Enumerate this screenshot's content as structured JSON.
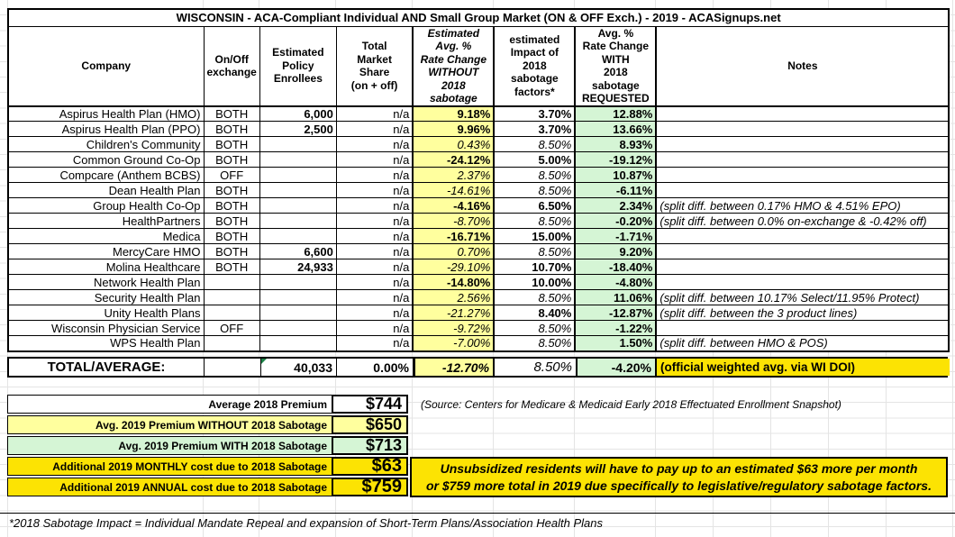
{
  "title": "WISCONSIN - ACA-Compliant Individual AND Small Group Market (ON & OFF Exch.) - 2019 - ACASignups.net",
  "columns": [
    {
      "label": "Company"
    },
    {
      "label": "On/Off\nexchange"
    },
    {
      "label": "Estimated\nPolicy\nEnrollees"
    },
    {
      "label": "Total\nMarket\nShare\n(on + off)"
    },
    {
      "label": "Estimated\nAvg. %\nRate Change\nWITHOUT\n2018 sabotage"
    },
    {
      "label": "estimated\nImpact of\n2018 sabotage\nfactors*"
    },
    {
      "label": "Avg. %\nRate Change\nWITH\n2018 sabotage\nREQUESTED"
    },
    {
      "label": "Notes"
    }
  ],
  "rows": [
    {
      "company": "Aspirus Health Plan (HMO)",
      "exchange": "BOTH",
      "enrollees": "6,000",
      "share": "n/a",
      "without": "9.18%",
      "wstyle": "b",
      "impact": "3.70%",
      "istyle": "b",
      "with": "12.88%",
      "note": ""
    },
    {
      "company": "Aspirus Health Plan (PPO)",
      "exchange": "BOTH",
      "enrollees": "2,500",
      "share": "n/a",
      "without": "9.96%",
      "wstyle": "b",
      "impact": "3.70%",
      "istyle": "b",
      "with": "13.66%",
      "note": ""
    },
    {
      "company": "Children's Community",
      "exchange": "BOTH",
      "enrollees": "",
      "share": "n/a",
      "without": "0.43%",
      "wstyle": "i",
      "impact": "8.50%",
      "istyle": "i",
      "with": "8.93%",
      "note": ""
    },
    {
      "company": "Common Ground Co-Op",
      "exchange": "BOTH",
      "enrollees": "",
      "share": "n/a",
      "without": "-24.12%",
      "wstyle": "b",
      "impact": "5.00%",
      "istyle": "b",
      "with": "-19.12%",
      "note": ""
    },
    {
      "company": "Compcare (Anthem BCBS)",
      "exchange": "OFF",
      "enrollees": "",
      "share": "n/a",
      "without": "2.37%",
      "wstyle": "i",
      "impact": "8.50%",
      "istyle": "i",
      "with": "10.87%",
      "note": ""
    },
    {
      "company": "Dean Health Plan",
      "exchange": "BOTH",
      "enrollees": "",
      "share": "n/a",
      "without": "-14.61%",
      "wstyle": "i",
      "impact": "8.50%",
      "istyle": "i",
      "with": "-6.11%",
      "note": ""
    },
    {
      "company": "Group Health Co-Op",
      "exchange": "BOTH",
      "enrollees": "",
      "share": "n/a",
      "without": "-4.16%",
      "wstyle": "b",
      "impact": "6.50%",
      "istyle": "b",
      "with": "2.34%",
      "note": "(split diff. between 0.17% HMO & 4.51% EPO)"
    },
    {
      "company": "HealthPartners",
      "exchange": "BOTH",
      "enrollees": "",
      "share": "n/a",
      "without": "-8.70%",
      "wstyle": "i",
      "impact": "8.50%",
      "istyle": "i",
      "with": "-0.20%",
      "note": "(split diff. between 0.0% on-exchange & -0.42% off)"
    },
    {
      "company": "Medica",
      "exchange": "BOTH",
      "enrollees": "",
      "share": "n/a",
      "without": "-16.71%",
      "wstyle": "b",
      "impact": "15.00%",
      "istyle": "b",
      "with": "-1.71%",
      "note": ""
    },
    {
      "company": "MercyCare HMO",
      "exchange": "BOTH",
      "enrollees": "6,600",
      "share": "n/a",
      "without": "0.70%",
      "wstyle": "i",
      "impact": "8.50%",
      "istyle": "i",
      "with": "9.20%",
      "note": ""
    },
    {
      "company": "Molina Healthcare",
      "exchange": "BOTH",
      "enrollees": "24,933",
      "share": "n/a",
      "without": "-29.10%",
      "wstyle": "i",
      "impact": "10.70%",
      "istyle": "b",
      "with": "-18.40%",
      "note": ""
    },
    {
      "company": "Network Health Plan",
      "exchange": "",
      "enrollees": "",
      "share": "n/a",
      "without": "-14.80%",
      "wstyle": "b",
      "impact": "10.00%",
      "istyle": "b",
      "with": "-4.80%",
      "note": ""
    },
    {
      "company": "Security Health Plan",
      "exchange": "",
      "enrollees": "",
      "share": "n/a",
      "without": "2.56%",
      "wstyle": "i",
      "impact": "8.50%",
      "istyle": "i",
      "with": "11.06%",
      "note": "(split diff. between 10.17% Select/11.95% Protect)"
    },
    {
      "company": "Unity Health Plans",
      "exchange": "",
      "enrollees": "",
      "share": "n/a",
      "without": "-21.27%",
      "wstyle": "i",
      "impact": "8.40%",
      "istyle": "b",
      "with": "-12.87%",
      "note": "(split diff. between the 3 product lines)"
    },
    {
      "company": "Wisconsin Physician Service",
      "exchange": "OFF",
      "enrollees": "",
      "share": "n/a",
      "without": "-9.72%",
      "wstyle": "i",
      "impact": "8.50%",
      "istyle": "i",
      "with": "-1.22%",
      "note": ""
    },
    {
      "company": "WPS Health Plan",
      "exchange": "",
      "enrollees": "",
      "share": "n/a",
      "without": "-7.00%",
      "wstyle": "i",
      "impact": "8.50%",
      "istyle": "i",
      "with": "1.50%",
      "note": "(split diff. between HMO & POS)"
    }
  ],
  "total": {
    "label": "TOTAL/AVERAGE:",
    "enrollees": "40,033",
    "share": "0.00%",
    "without": "-12.70%",
    "impact": "8.50%",
    "with": "-4.20%",
    "note": "(official weighted avg. via WI DOI)"
  },
  "summary": [
    {
      "label": "Average 2018 Premium",
      "value": "$744",
      "bg": "white",
      "size": "sm"
    },
    {
      "label": "Avg. 2019 Premium WITHOUT 2018 Sabotage",
      "value": "$650",
      "bg": "lightyellow",
      "size": "sm"
    },
    {
      "label": "Avg. 2019 Premium WITH 2018 Sabotage",
      "value": "$713",
      "bg": "lightgreen",
      "size": "sm"
    },
    {
      "label": "Additional 2019 MONTHLY cost due to 2018 Sabotage",
      "value": "$63",
      "bg": "yellow",
      "size": "lg"
    },
    {
      "label": "Additional 2019 ANNUAL cost due to 2018 Sabotage",
      "value": "$759",
      "bg": "yellow",
      "size": "lg"
    }
  ],
  "source_note": "(Source: Centers for Medicare & Medicaid Early 2018 Effectuated Enrollment Snapshot)",
  "callout": {
    "line1": "Unsubsidized residents will have to pay up to an estimated $63 more per month",
    "line2": "or $759 more total in 2019 due specifically to legislative/regulatory sabotage factors."
  },
  "footnote": "*2018 Sabotage Impact = Individual Mandate Repeal and expansion of Short-Term Plans/Association Health Plans",
  "colors": {
    "without_column_bg": "#ffff9e",
    "with_column_bg": "#d5f5d5",
    "highlight_yellow_bg": "#fce303",
    "grid_line": "#e4e4e4",
    "comment_triangle": "#1d8348"
  }
}
